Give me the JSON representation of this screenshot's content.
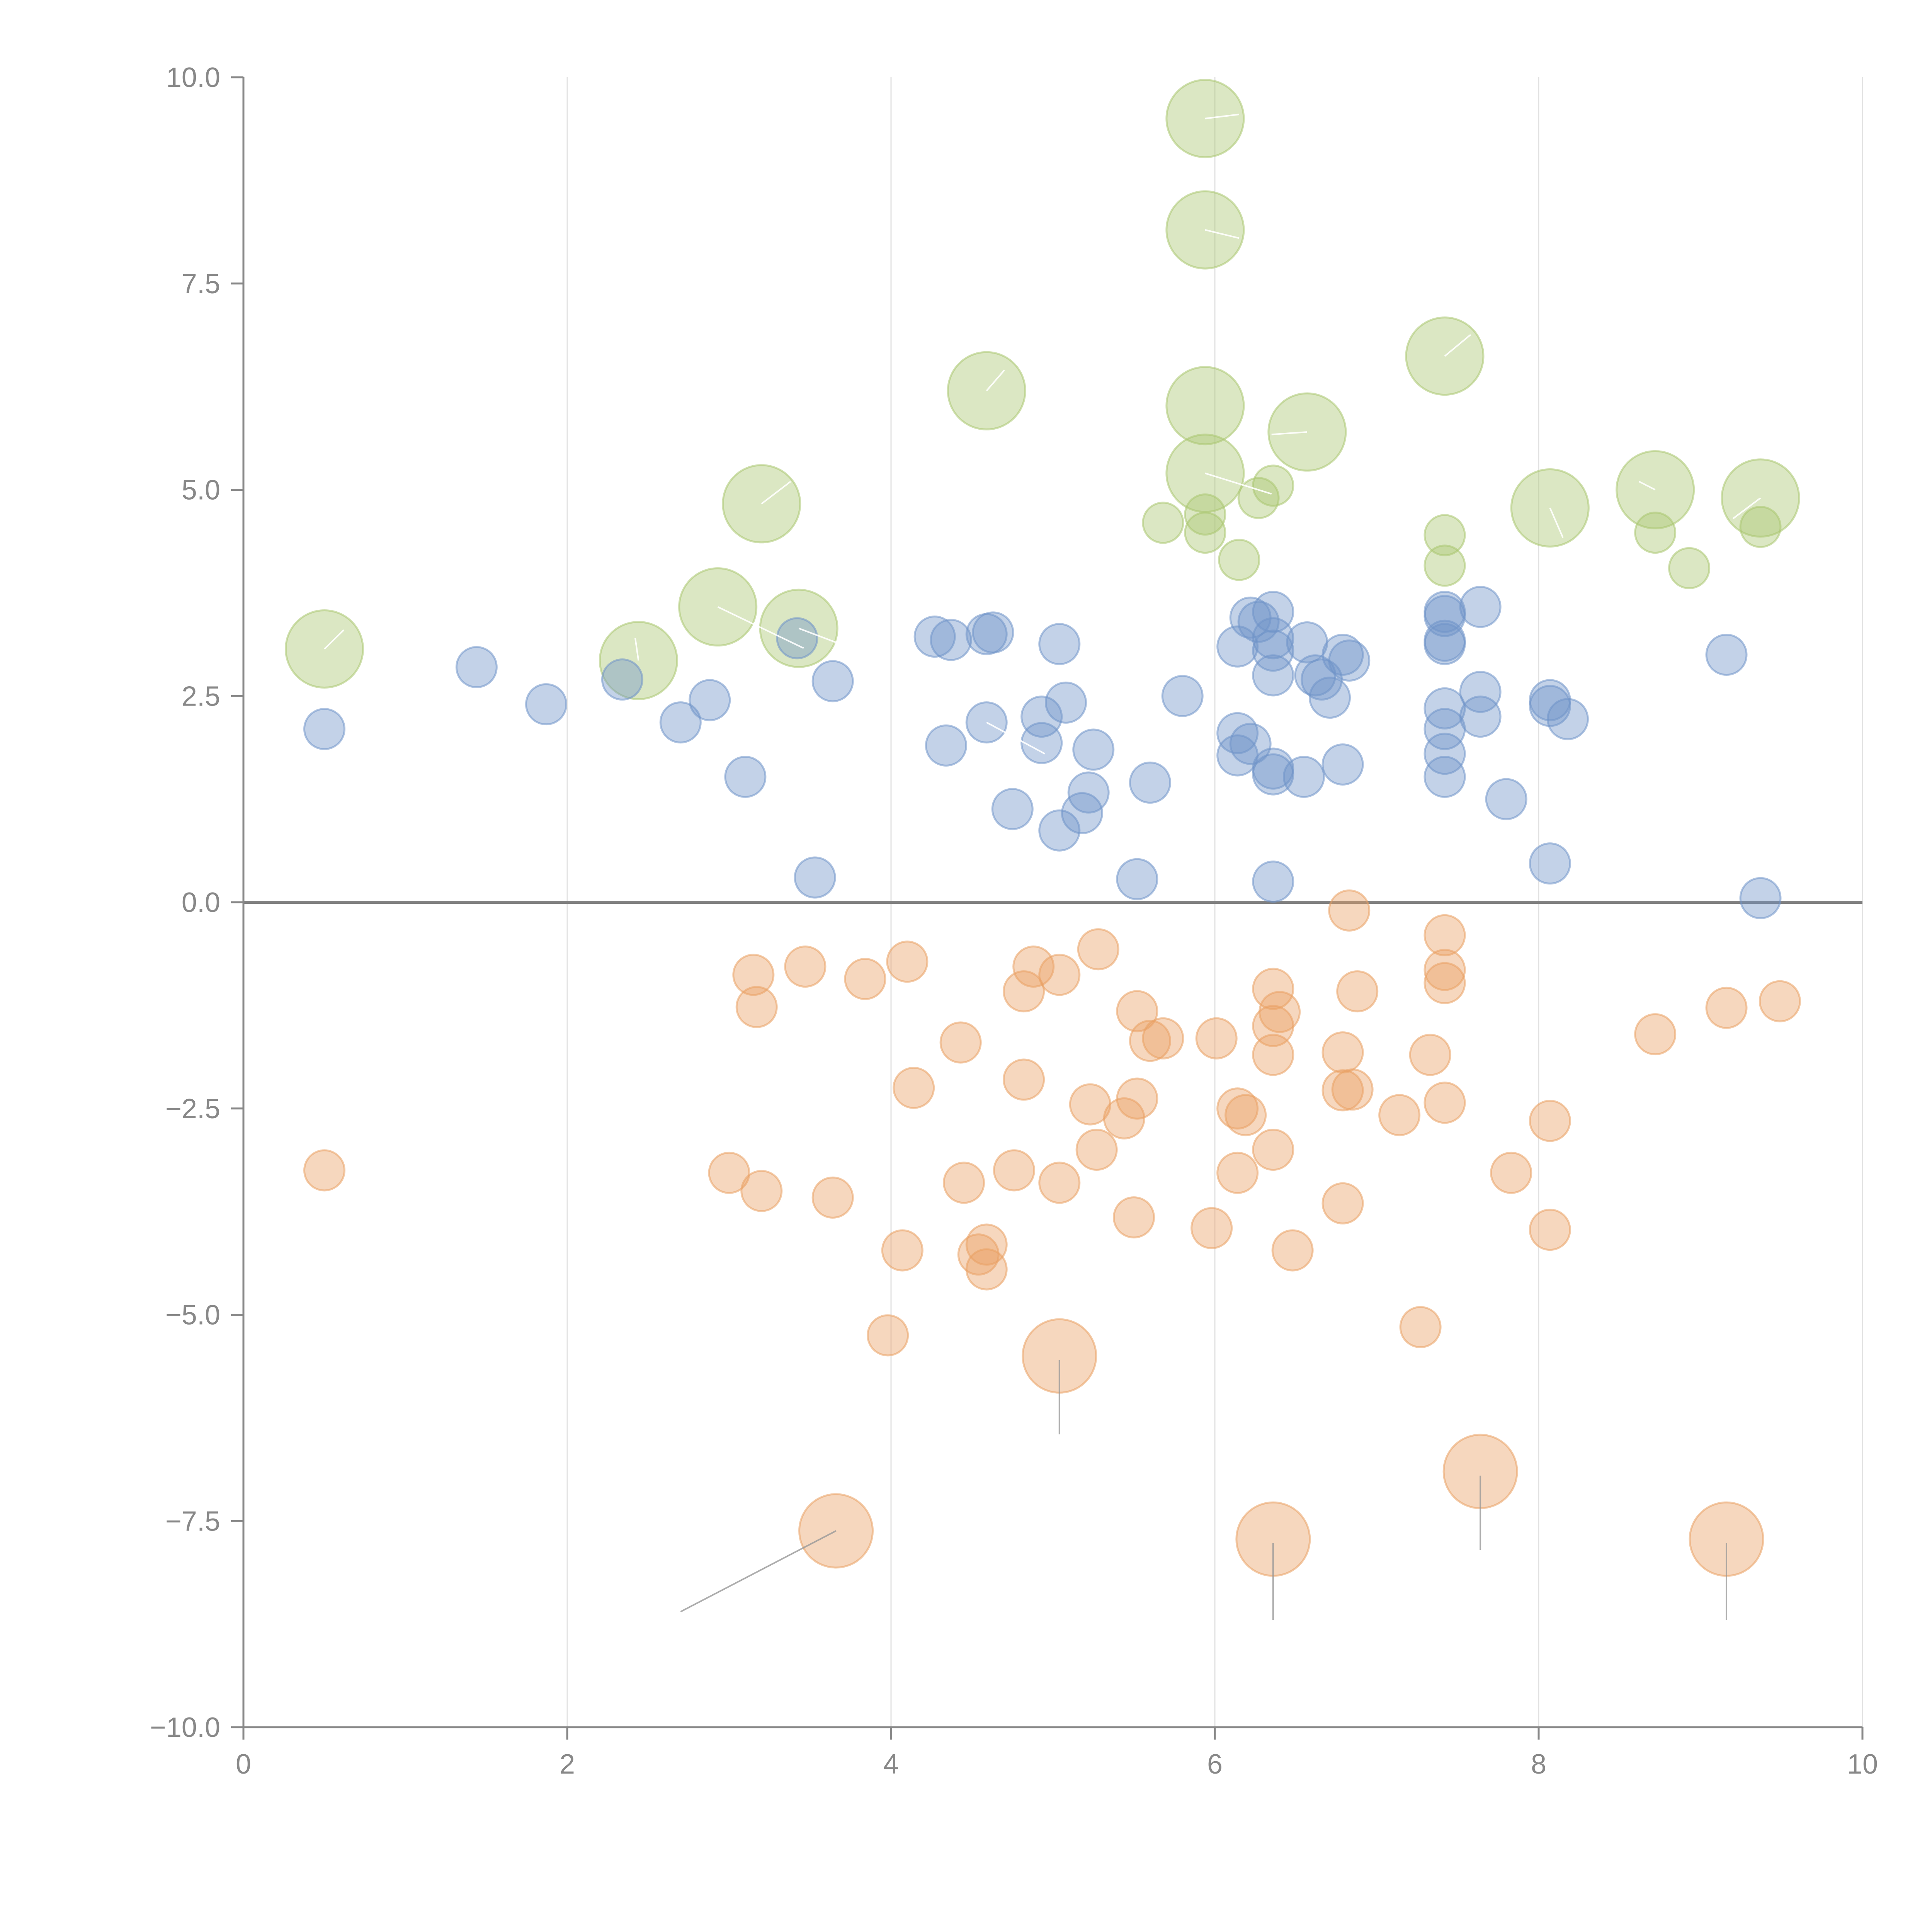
{
  "chart_data": {
    "type": "scatter",
    "title": "",
    "xlabel": "",
    "ylabel": "",
    "xlim": [
      0,
      10
    ],
    "ylim": [
      -10,
      10
    ],
    "grid": "vertical",
    "x_ticks": [
      0,
      2,
      4,
      6,
      8,
      10
    ],
    "x_tick_labels": [
      "0",
      "2",
      "4",
      "6",
      "8",
      "10"
    ],
    "y_ticks": [
      10,
      7.5,
      5,
      2.5,
      0,
      -2.5,
      -5,
      -7.5,
      -10
    ],
    "y_tick_labels": [
      "10.0",
      "7.5",
      "5.0",
      "2.5",
      "0.0",
      "−2.5",
      "−5.0",
      "−7.5",
      "−10.0"
    ],
    "zero_line_y": 0,
    "colors": {
      "green": "#a9c66f",
      "blue": "#6f93c9",
      "orange": "#e9a063",
      "axis": "#888888",
      "grid": "#e2e2e2",
      "leader_light": "#ffffff",
      "leader_dark": "#999999"
    },
    "series": [
      {
        "name": "green",
        "color": "#a9c66f",
        "points": [
          {
            "x": 5.94,
            "y": 9.5,
            "size": "large"
          },
          {
            "x": 5.94,
            "y": 8.15,
            "size": "large"
          },
          {
            "x": 7.42,
            "y": 6.62,
            "size": "large"
          },
          {
            "x": 4.59,
            "y": 6.2,
            "size": "large"
          },
          {
            "x": 5.94,
            "y": 6.02,
            "size": "large"
          },
          {
            "x": 6.57,
            "y": 5.7,
            "size": "large"
          },
          {
            "x": 5.94,
            "y": 5.2,
            "size": "large"
          },
          {
            "x": 8.72,
            "y": 5.0,
            "size": "large"
          },
          {
            "x": 9.37,
            "y": 4.9,
            "size": "large"
          },
          {
            "x": 3.2,
            "y": 4.83,
            "size": "large"
          },
          {
            "x": 8.07,
            "y": 4.78,
            "size": "large"
          },
          {
            "x": 2.93,
            "y": 3.58,
            "size": "large"
          },
          {
            "x": 3.43,
            "y": 3.32,
            "size": "large"
          },
          {
            "x": 0.5,
            "y": 3.07,
            "size": "large"
          },
          {
            "x": 2.44,
            "y": 2.93,
            "size": "large"
          },
          {
            "x": 6.36,
            "y": 5.05,
            "size": "small"
          },
          {
            "x": 6.27,
            "y": 4.9,
            "size": "small"
          },
          {
            "x": 5.94,
            "y": 4.7,
            "size": "small"
          },
          {
            "x": 5.94,
            "y": 4.48,
            "size": "small"
          },
          {
            "x": 5.68,
            "y": 4.6,
            "size": "small"
          },
          {
            "x": 6.15,
            "y": 4.15,
            "size": "small"
          },
          {
            "x": 7.42,
            "y": 4.45,
            "size": "small"
          },
          {
            "x": 7.42,
            "y": 4.08,
            "size": "small"
          },
          {
            "x": 8.72,
            "y": 4.48,
            "size": "small"
          },
          {
            "x": 9.37,
            "y": 4.55,
            "size": "small"
          },
          {
            "x": 8.93,
            "y": 4.05,
            "size": "small"
          }
        ]
      },
      {
        "name": "blue",
        "color": "#6f93c9",
        "points": [
          {
            "x": 0.5,
            "y": 2.1
          },
          {
            "x": 1.44,
            "y": 2.85
          },
          {
            "x": 1.87,
            "y": 2.4
          },
          {
            "x": 2.34,
            "y": 2.7
          },
          {
            "x": 2.7,
            "y": 2.18
          },
          {
            "x": 2.88,
            "y": 2.45
          },
          {
            "x": 3.1,
            "y": 1.52
          },
          {
            "x": 3.42,
            "y": 3.2
          },
          {
            "x": 3.53,
            "y": 0.3
          },
          {
            "x": 3.64,
            "y": 2.68
          },
          {
            "x": 4.27,
            "y": 3.22
          },
          {
            "x": 4.37,
            "y": 3.18
          },
          {
            "x": 4.34,
            "y": 1.9
          },
          {
            "x": 4.59,
            "y": 3.25
          },
          {
            "x": 4.63,
            "y": 3.27
          },
          {
            "x": 4.59,
            "y": 2.18
          },
          {
            "x": 4.75,
            "y": 1.13
          },
          {
            "x": 4.93,
            "y": 2.25
          },
          {
            "x": 4.93,
            "y": 1.93
          },
          {
            "x": 5.04,
            "y": 3.13
          },
          {
            "x": 5.08,
            "y": 2.42
          },
          {
            "x": 5.25,
            "y": 1.85
          },
          {
            "x": 5.22,
            "y": 1.33
          },
          {
            "x": 5.18,
            "y": 1.08
          },
          {
            "x": 5.04,
            "y": 0.87
          },
          {
            "x": 5.52,
            "y": 0.28
          },
          {
            "x": 5.6,
            "y": 1.45
          },
          {
            "x": 5.8,
            "y": 2.5
          },
          {
            "x": 6.14,
            "y": 3.1
          },
          {
            "x": 6.22,
            "y": 3.45
          },
          {
            "x": 6.27,
            "y": 3.4
          },
          {
            "x": 6.36,
            "y": 3.52
          },
          {
            "x": 6.36,
            "y": 3.2
          },
          {
            "x": 6.36,
            "y": 3.05
          },
          {
            "x": 6.36,
            "y": 2.75
          },
          {
            "x": 6.14,
            "y": 2.05
          },
          {
            "x": 6.22,
            "y": 1.92
          },
          {
            "x": 6.14,
            "y": 1.78
          },
          {
            "x": 6.36,
            "y": 1.62
          },
          {
            "x": 6.36,
            "y": 1.55
          },
          {
            "x": 6.36,
            "y": 0.25
          },
          {
            "x": 6.57,
            "y": 3.15
          },
          {
            "x": 6.62,
            "y": 2.75
          },
          {
            "x": 6.66,
            "y": 2.7
          },
          {
            "x": 6.71,
            "y": 2.48
          },
          {
            "x": 6.55,
            "y": 1.52
          },
          {
            "x": 6.79,
            "y": 3.0
          },
          {
            "x": 6.83,
            "y": 2.93
          },
          {
            "x": 6.79,
            "y": 1.67
          },
          {
            "x": 7.42,
            "y": 3.52
          },
          {
            "x": 7.42,
            "y": 3.47
          },
          {
            "x": 7.42,
            "y": 3.17
          },
          {
            "x": 7.42,
            "y": 3.13
          },
          {
            "x": 7.42,
            "y": 2.35
          },
          {
            "x": 7.42,
            "y": 2.1
          },
          {
            "x": 7.42,
            "y": 1.8
          },
          {
            "x": 7.42,
            "y": 1.52
          },
          {
            "x": 7.64,
            "y": 3.58
          },
          {
            "x": 7.64,
            "y": 2.55
          },
          {
            "x": 7.64,
            "y": 2.25
          },
          {
            "x": 7.8,
            "y": 1.25
          },
          {
            "x": 8.07,
            "y": 2.45
          },
          {
            "x": 8.07,
            "y": 2.38
          },
          {
            "x": 8.18,
            "y": 2.22
          },
          {
            "x": 8.07,
            "y": 0.47
          },
          {
            "x": 9.16,
            "y": 3.0
          },
          {
            "x": 9.37,
            "y": 0.05
          }
        ]
      },
      {
        "name": "orange",
        "color": "#e9a063",
        "points": [
          {
            "x": 0.5,
            "y": -3.25
          },
          {
            "x": 3.0,
            "y": -3.28
          },
          {
            "x": 3.15,
            "y": -0.88
          },
          {
            "x": 3.17,
            "y": -1.27
          },
          {
            "x": 3.2,
            "y": -3.5
          },
          {
            "x": 3.47,
            "y": -0.78
          },
          {
            "x": 3.64,
            "y": -3.58
          },
          {
            "x": 3.84,
            "y": -0.93
          },
          {
            "x": 3.98,
            "y": -5.25
          },
          {
            "x": 4.07,
            "y": -4.22
          },
          {
            "x": 4.1,
            "y": -0.72
          },
          {
            "x": 4.14,
            "y": -2.25
          },
          {
            "x": 4.43,
            "y": -1.7
          },
          {
            "x": 4.45,
            "y": -3.4
          },
          {
            "x": 4.54,
            "y": -4.27
          },
          {
            "x": 4.59,
            "y": -4.15
          },
          {
            "x": 4.59,
            "y": -4.45
          },
          {
            "x": 4.76,
            "y": -3.25
          },
          {
            "x": 4.82,
            "y": -2.15
          },
          {
            "x": 4.82,
            "y": -1.08
          },
          {
            "x": 4.88,
            "y": -0.78
          },
          {
            "x": 5.04,
            "y": -0.88
          },
          {
            "x": 5.04,
            "y": -3.4
          },
          {
            "x": 5.23,
            "y": -2.45
          },
          {
            "x": 5.27,
            "y": -3.0
          },
          {
            "x": 5.28,
            "y": -0.57
          },
          {
            "x": 5.44,
            "y": -2.62
          },
          {
            "x": 5.5,
            "y": -3.82
          },
          {
            "x": 5.52,
            "y": -2.38
          },
          {
            "x": 5.52,
            "y": -1.32
          },
          {
            "x": 5.6,
            "y": -1.68
          },
          {
            "x": 5.68,
            "y": -1.65
          },
          {
            "x": 5.98,
            "y": -3.95
          },
          {
            "x": 6.01,
            "y": -1.65
          },
          {
            "x": 6.14,
            "y": -3.28
          },
          {
            "x": 6.14,
            "y": -2.5
          },
          {
            "x": 6.19,
            "y": -2.58
          },
          {
            "x": 6.36,
            "y": -3.0
          },
          {
            "x": 6.36,
            "y": -1.85
          },
          {
            "x": 6.36,
            "y": -1.5
          },
          {
            "x": 6.4,
            "y": -1.33
          },
          {
            "x": 6.36,
            "y": -1.05
          },
          {
            "x": 6.48,
            "y": -4.22
          },
          {
            "x": 6.79,
            "y": -3.65
          },
          {
            "x": 6.79,
            "y": -2.28
          },
          {
            "x": 6.85,
            "y": -2.27
          },
          {
            "x": 6.79,
            "y": -1.82
          },
          {
            "x": 6.88,
            "y": -1.08
          },
          {
            "x": 6.83,
            "y": -0.1
          },
          {
            "x": 7.14,
            "y": -2.58
          },
          {
            "x": 7.27,
            "y": -5.15
          },
          {
            "x": 7.33,
            "y": -1.85
          },
          {
            "x": 7.42,
            "y": -2.43
          },
          {
            "x": 7.42,
            "y": -0.98
          },
          {
            "x": 7.42,
            "y": -0.82
          },
          {
            "x": 7.42,
            "y": -0.4
          },
          {
            "x": 7.83,
            "y": -3.28
          },
          {
            "x": 8.07,
            "y": -2.65
          },
          {
            "x": 8.07,
            "y": -3.97
          },
          {
            "x": 8.72,
            "y": -1.6
          },
          {
            "x": 9.16,
            "y": -1.28
          },
          {
            "x": 9.49,
            "y": -1.2
          },
          {
            "x": 5.04,
            "y": -5.5,
            "size": "large"
          },
          {
            "x": 3.66,
            "y": -7.62,
            "size": "large"
          },
          {
            "x": 6.36,
            "y": -7.72,
            "size": "large"
          },
          {
            "x": 7.64,
            "y": -6.9,
            "size": "large"
          },
          {
            "x": 9.16,
            "y": -7.72,
            "size": "large"
          }
        ]
      }
    ],
    "leader_lines": [
      {
        "x1": 5.94,
        "y1": 9.5,
        "x2": 6.15,
        "y2": 9.55,
        "tone": "light"
      },
      {
        "x1": 5.94,
        "y1": 8.15,
        "x2": 6.15,
        "y2": 8.05,
        "tone": "light"
      },
      {
        "x1": 7.42,
        "y1": 6.62,
        "x2": 7.58,
        "y2": 6.88,
        "tone": "light"
      },
      {
        "x1": 4.59,
        "y1": 6.2,
        "x2": 4.7,
        "y2": 6.45,
        "tone": "light"
      },
      {
        "x1": 6.57,
        "y1": 5.7,
        "x2": 6.35,
        "y2": 5.67,
        "tone": "light"
      },
      {
        "x1": 5.94,
        "y1": 5.2,
        "x2": 6.35,
        "y2": 4.95,
        "tone": "light"
      },
      {
        "x1": 8.72,
        "y1": 5.0,
        "x2": 8.62,
        "y2": 5.1,
        "tone": "light"
      },
      {
        "x1": 9.37,
        "y1": 4.9,
        "x2": 9.2,
        "y2": 4.65,
        "tone": "light"
      },
      {
        "x1": 3.2,
        "y1": 4.83,
        "x2": 3.38,
        "y2": 5.1,
        "tone": "light"
      },
      {
        "x1": 8.07,
        "y1": 4.78,
        "x2": 8.15,
        "y2": 4.42,
        "tone": "light"
      },
      {
        "x1": 2.93,
        "y1": 3.58,
        "x2": 3.46,
        "y2": 3.08,
        "tone": "light"
      },
      {
        "x1": 3.43,
        "y1": 3.32,
        "x2": 3.7,
        "y2": 3.12,
        "tone": "light"
      },
      {
        "x1": 0.5,
        "y1": 3.07,
        "x2": 0.62,
        "y2": 3.3,
        "tone": "light"
      },
      {
        "x1": 2.44,
        "y1": 2.93,
        "x2": 2.42,
        "y2": 3.2,
        "tone": "light"
      },
      {
        "x1": 4.59,
        "y1": 2.18,
        "x2": 4.95,
        "y2": 1.8,
        "tone": "light"
      },
      {
        "x1": 3.66,
        "y1": -7.62,
        "x2": 2.7,
        "y2": -8.6,
        "tone": "dark"
      },
      {
        "x1": 5.04,
        "y1": -5.55,
        "x2": 5.04,
        "y2": -6.45,
        "tone": "dark"
      },
      {
        "x1": 6.36,
        "y1": -7.77,
        "x2": 6.36,
        "y2": -8.7,
        "tone": "dark"
      },
      {
        "x1": 7.64,
        "y1": -6.95,
        "x2": 7.64,
        "y2": -7.85,
        "tone": "dark"
      },
      {
        "x1": 9.16,
        "y1": -7.77,
        "x2": 9.16,
        "y2": -8.7,
        "tone": "dark"
      }
    ]
  }
}
